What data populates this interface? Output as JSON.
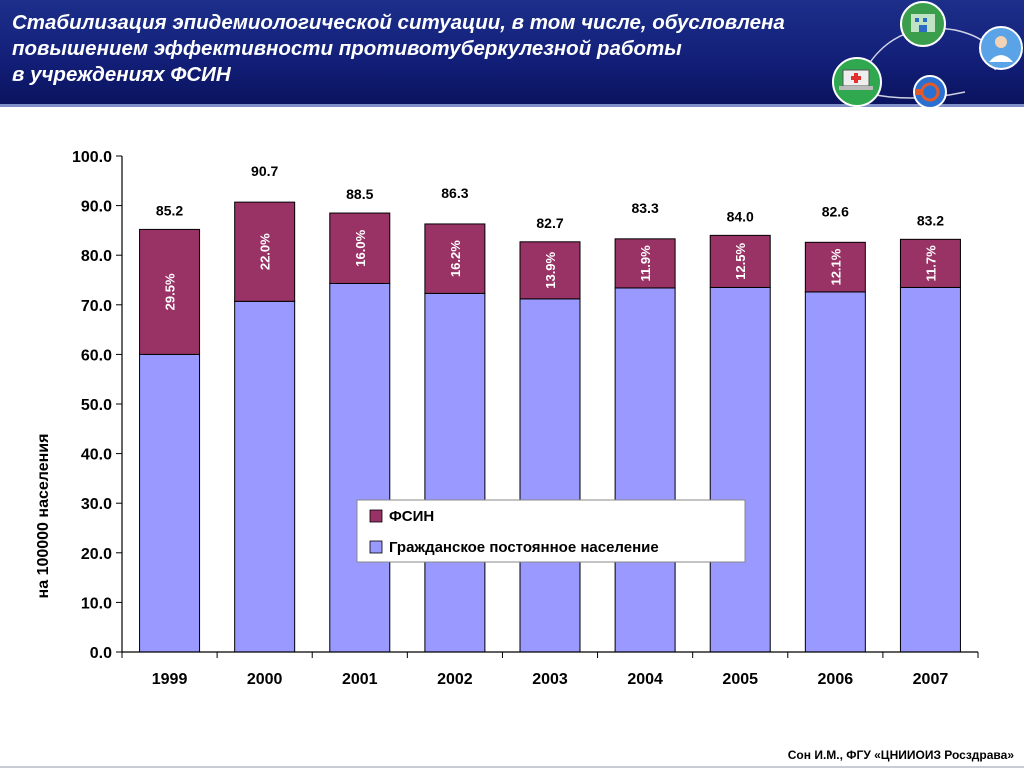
{
  "header": {
    "title_lines": [
      "Стабилизация эпидемиологической ситуации, в том числе, обусловлена",
      "повышением эффективности противотуберкулезной работы",
      "в учреждениях ФСИН"
    ]
  },
  "footer": {
    "source": "Сон И.М., ФГУ «ЦНИИОИЗ Росздрава»"
  },
  "colors": {
    "header_bg": "#13207a",
    "fsin": "#993366",
    "civil": "#9999ff",
    "logo_green": "#2fa84f",
    "logo_blue": "#5aa3e6"
  },
  "icons": [
    "hospital-network-globe-icon",
    "doctor-globe-icon",
    "medical-laptop-globe-icon",
    "tb-institution-globe-icon"
  ],
  "chart_data": {
    "type": "bar",
    "stacked": true,
    "categories": [
      "1999",
      "2000",
      "2001",
      "2002",
      "2003",
      "2004",
      "2005",
      "2006",
      "2007"
    ],
    "series": [
      {
        "name": "Гражданское постоянное население",
        "color": "#9999ff",
        "values": [
          60.0,
          70.7,
          74.3,
          72.3,
          71.2,
          73.4,
          73.5,
          72.6,
          73.5
        ]
      },
      {
        "name": "ФСИН",
        "color": "#993366",
        "values": [
          25.2,
          20.0,
          14.2,
          14.0,
          11.5,
          9.9,
          10.5,
          10.0,
          9.7
        ],
        "labels": [
          "29.5%",
          "22.0%",
          "16.0%",
          "16.2%",
          "13.9%",
          "11.9%",
          "12.5%",
          "12.1%",
          "11.7%"
        ]
      }
    ],
    "totals": [
      "85.2",
      "90.7",
      "88.5",
      "86.3",
      "82.7",
      "83.3",
      "84.0",
      "82.6",
      "83.2"
    ],
    "ylabel": "на 100000 населения",
    "ylim": [
      0,
      100
    ],
    "yticks": [
      "0.0",
      "10.0",
      "20.0",
      "30.0",
      "40.0",
      "50.0",
      "60.0",
      "70.0",
      "80.0",
      "90.0",
      "100.0"
    ],
    "legend": {
      "position": "lower-center",
      "entries": [
        "ФСИН",
        "Гражданское постоянное население"
      ]
    }
  }
}
